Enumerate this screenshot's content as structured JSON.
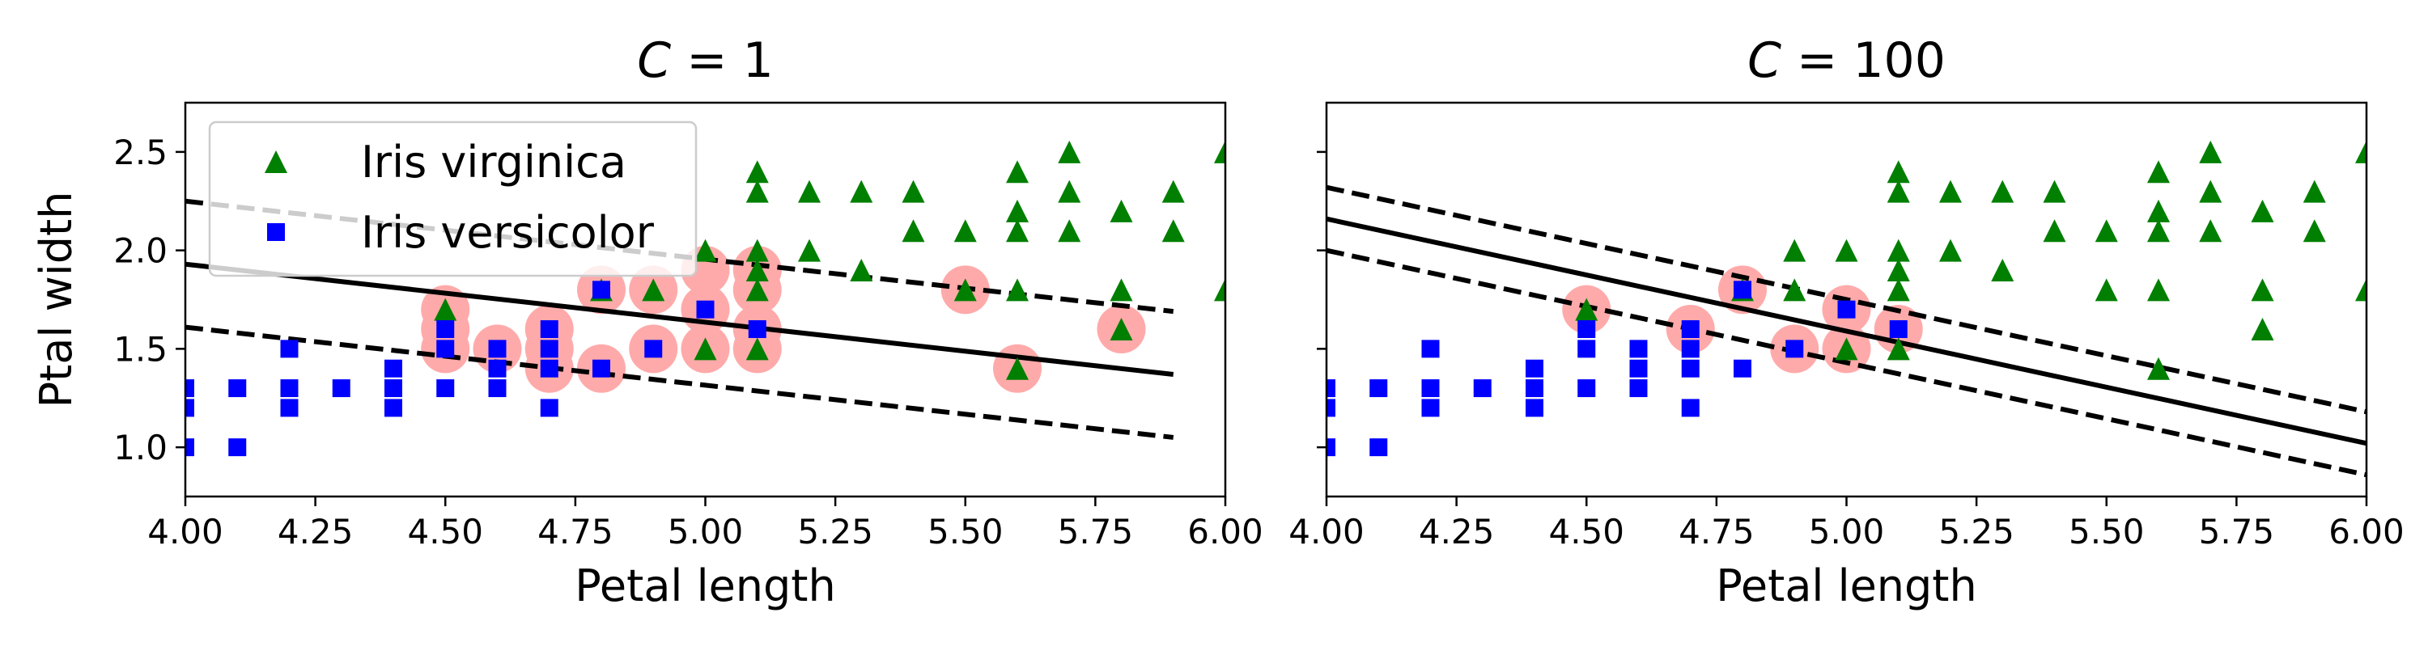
{
  "chart_data": [
    {
      "type": "scatter",
      "title": "C = 1",
      "title_math": "C",
      "title_rest": " = 1",
      "xlabel": "Petal length",
      "ylabel": "Ptal width",
      "xlim": [
        4.0,
        6.0
      ],
      "ylim": [
        0.75,
        2.75
      ],
      "xticks": [
        "4.00",
        "4.25",
        "4.50",
        "4.75",
        "5.00",
        "5.25",
        "5.50",
        "5.75",
        "6.00"
      ],
      "yticks": [
        "1.0",
        "1.5",
        "2.0",
        "2.5"
      ],
      "legend": {
        "placement": "upper-left",
        "entries": [
          "Iris virginica",
          "Iris versicolor"
        ]
      },
      "series": [
        {
          "name": "Iris virginica",
          "marker": "triangle",
          "color": "#007f00",
          "points": [
            [
              4.5,
              1.7
            ],
            [
              4.8,
              1.8
            ],
            [
              4.9,
              1.8
            ],
            [
              5.0,
              2.0
            ],
            [
              5.0,
              1.5
            ],
            [
              5.1,
              2.4
            ],
            [
              5.1,
              2.3
            ],
            [
              5.1,
              2.0
            ],
            [
              5.1,
              1.9
            ],
            [
              5.1,
              1.8
            ],
            [
              5.1,
              1.5
            ],
            [
              5.2,
              2.3
            ],
            [
              5.2,
              2.0
            ],
            [
              5.3,
              2.3
            ],
            [
              5.3,
              1.9
            ],
            [
              5.4,
              2.3
            ],
            [
              5.4,
              2.1
            ],
            [
              5.5,
              2.1
            ],
            [
              5.5,
              1.8
            ],
            [
              5.6,
              2.4
            ],
            [
              5.6,
              2.2
            ],
            [
              5.6,
              2.1
            ],
            [
              5.6,
              1.8
            ],
            [
              5.6,
              1.4
            ],
            [
              5.7,
              2.5
            ],
            [
              5.7,
              2.3
            ],
            [
              5.7,
              2.1
            ],
            [
              5.8,
              2.2
            ],
            [
              5.8,
              1.8
            ],
            [
              5.8,
              1.6
            ],
            [
              5.9,
              2.3
            ],
            [
              5.9,
              2.1
            ],
            [
              6.0,
              2.5
            ],
            [
              6.0,
              1.8
            ]
          ]
        },
        {
          "name": "Iris versicolor",
          "marker": "square",
          "color": "#0000ff",
          "points": [
            [
              4.0,
              1.0
            ],
            [
              4.0,
              1.2
            ],
            [
              4.0,
              1.3
            ],
            [
              4.1,
              1.0
            ],
            [
              4.1,
              1.3
            ],
            [
              4.2,
              1.2
            ],
            [
              4.2,
              1.3
            ],
            [
              4.2,
              1.5
            ],
            [
              4.3,
              1.3
            ],
            [
              4.4,
              1.2
            ],
            [
              4.4,
              1.3
            ],
            [
              4.4,
              1.4
            ],
            [
              4.5,
              1.3
            ],
            [
              4.5,
              1.5
            ],
            [
              4.5,
              1.6
            ],
            [
              4.6,
              1.3
            ],
            [
              4.6,
              1.4
            ],
            [
              4.6,
              1.5
            ],
            [
              4.7,
              1.2
            ],
            [
              4.7,
              1.4
            ],
            [
              4.7,
              1.5
            ],
            [
              4.7,
              1.6
            ],
            [
              4.8,
              1.4
            ],
            [
              4.8,
              1.8
            ],
            [
              4.9,
              1.5
            ],
            [
              5.0,
              1.7
            ],
            [
              5.1,
              1.6
            ]
          ]
        }
      ],
      "support_vectors": [
        [
          4.5,
          1.7
        ],
        [
          4.5,
          1.6
        ],
        [
          4.5,
          1.5
        ],
        [
          4.6,
          1.5
        ],
        [
          4.7,
          1.6
        ],
        [
          4.7,
          1.5
        ],
        [
          4.7,
          1.4
        ],
        [
          4.8,
          1.8
        ],
        [
          4.8,
          1.4
        ],
        [
          4.9,
          1.8
        ],
        [
          4.9,
          1.5
        ],
        [
          5.0,
          1.9
        ],
        [
          5.0,
          1.7
        ],
        [
          5.0,
          1.5
        ],
        [
          5.1,
          1.9
        ],
        [
          5.1,
          1.8
        ],
        [
          5.1,
          1.6
        ],
        [
          5.1,
          1.5
        ],
        [
          5.5,
          1.8
        ],
        [
          5.6,
          1.4
        ],
        [
          5.8,
          1.6
        ]
      ],
      "lines": [
        {
          "style": "solid",
          "from": [
            4.0,
            1.93
          ],
          "to": [
            5.9,
            1.37
          ]
        },
        {
          "style": "dashed",
          "from": [
            4.0,
            2.25
          ],
          "to": [
            5.9,
            1.69
          ]
        },
        {
          "style": "dashed",
          "from": [
            4.0,
            1.61
          ],
          "to": [
            5.9,
            1.05
          ]
        }
      ],
      "grid": false
    },
    {
      "type": "scatter",
      "title": "C = 100",
      "title_math": "C",
      "title_rest": " = 100",
      "xlabel": "Petal length",
      "ylabel": "",
      "xlim": [
        4.0,
        6.0
      ],
      "ylim": [
        0.75,
        2.75
      ],
      "xticks": [
        "4.00",
        "4.25",
        "4.50",
        "4.75",
        "5.00",
        "5.25",
        "5.50",
        "5.75",
        "6.00"
      ],
      "yticks": [],
      "series": [
        {
          "name": "Iris virginica",
          "marker": "triangle",
          "color": "#007f00",
          "points": [
            [
              4.5,
              1.7
            ],
            [
              4.8,
              1.8
            ],
            [
              4.9,
              1.8
            ],
            [
              4.9,
              2.0
            ],
            [
              5.0,
              2.0
            ],
            [
              5.0,
              1.5
            ],
            [
              5.1,
              2.4
            ],
            [
              5.1,
              2.3
            ],
            [
              5.1,
              2.0
            ],
            [
              5.1,
              1.9
            ],
            [
              5.1,
              1.8
            ],
            [
              5.1,
              1.5
            ],
            [
              5.2,
              2.3
            ],
            [
              5.2,
              2.0
            ],
            [
              5.3,
              2.3
            ],
            [
              5.3,
              1.9
            ],
            [
              5.4,
              2.3
            ],
            [
              5.4,
              2.1
            ],
            [
              5.5,
              2.1
            ],
            [
              5.5,
              1.8
            ],
            [
              5.6,
              2.4
            ],
            [
              5.6,
              2.2
            ],
            [
              5.6,
              2.1
            ],
            [
              5.6,
              1.8
            ],
            [
              5.6,
              1.4
            ],
            [
              5.7,
              2.5
            ],
            [
              5.7,
              2.3
            ],
            [
              5.7,
              2.1
            ],
            [
              5.8,
              2.2
            ],
            [
              5.8,
              1.8
            ],
            [
              5.8,
              1.6
            ],
            [
              5.9,
              2.3
            ],
            [
              5.9,
              2.1
            ],
            [
              6.0,
              2.5
            ],
            [
              6.0,
              1.8
            ]
          ]
        },
        {
          "name": "Iris versicolor",
          "marker": "square",
          "color": "#0000ff",
          "points": [
            [
              4.0,
              1.0
            ],
            [
              4.0,
              1.2
            ],
            [
              4.0,
              1.3
            ],
            [
              4.1,
              1.0
            ],
            [
              4.1,
              1.3
            ],
            [
              4.2,
              1.2
            ],
            [
              4.2,
              1.3
            ],
            [
              4.2,
              1.5
            ],
            [
              4.3,
              1.3
            ],
            [
              4.4,
              1.2
            ],
            [
              4.4,
              1.3
            ],
            [
              4.4,
              1.4
            ],
            [
              4.5,
              1.3
            ],
            [
              4.5,
              1.5
            ],
            [
              4.5,
              1.6
            ],
            [
              4.6,
              1.3
            ],
            [
              4.6,
              1.4
            ],
            [
              4.6,
              1.5
            ],
            [
              4.7,
              1.2
            ],
            [
              4.7,
              1.4
            ],
            [
              4.7,
              1.5
            ],
            [
              4.7,
              1.6
            ],
            [
              4.8,
              1.4
            ],
            [
              4.8,
              1.8
            ],
            [
              4.9,
              1.5
            ],
            [
              5.0,
              1.7
            ],
            [
              5.1,
              1.6
            ]
          ]
        }
      ],
      "support_vectors": [
        [
          4.5,
          1.7
        ],
        [
          4.7,
          1.6
        ],
        [
          4.8,
          1.8
        ],
        [
          4.9,
          1.5
        ],
        [
          5.0,
          1.7
        ],
        [
          5.0,
          1.5
        ],
        [
          5.1,
          1.6
        ]
      ],
      "lines": [
        {
          "style": "solid",
          "from": [
            4.0,
            2.16
          ],
          "to": [
            6.0,
            1.02
          ]
        },
        {
          "style": "dashed",
          "from": [
            4.0,
            2.32
          ],
          "to": [
            6.0,
            1.18
          ]
        },
        {
          "style": "dashed",
          "from": [
            4.0,
            2.0
          ],
          "to": [
            6.0,
            0.86
          ]
        }
      ],
      "grid": false
    }
  ]
}
